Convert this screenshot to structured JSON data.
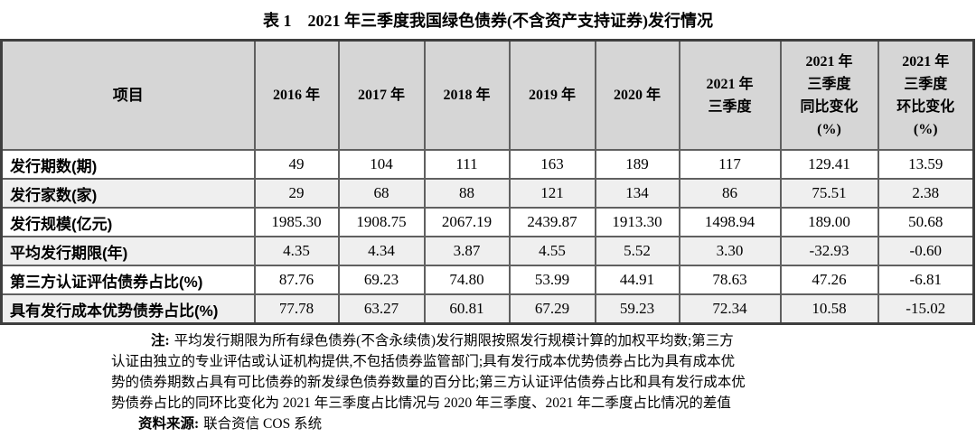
{
  "title": {
    "tag": "表 1",
    "text": "2021 年三季度我国绿色债券(不含资产支持证券)发行情况"
  },
  "table": {
    "item_header": "项目",
    "year_headers": [
      "2016 年",
      "2017 年",
      "2018 年",
      "2019 年",
      "2020 年",
      "2021 年\n三季度",
      "2021 年\n三季度\n同比变化\n(%)",
      "2021 年\n三季度\n环比变化\n(%)"
    ],
    "rows": [
      {
        "label": "发行期数(期)",
        "values": [
          "49",
          "104",
          "111",
          "163",
          "189",
          "117",
          "129.41",
          "13.59"
        ]
      },
      {
        "label": "发行家数(家)",
        "values": [
          "29",
          "68",
          "88",
          "121",
          "134",
          "86",
          "75.51",
          "2.38"
        ]
      },
      {
        "label": "发行规模(亿元)",
        "values": [
          "1985.30",
          "1908.75",
          "2067.19",
          "2439.87",
          "1913.30",
          "1498.94",
          "189.00",
          "50.68"
        ]
      },
      {
        "label": "平均发行期限(年)",
        "values": [
          "4.35",
          "4.34",
          "3.87",
          "4.55",
          "5.52",
          "3.30",
          "-32.93",
          "-0.60"
        ]
      },
      {
        "label": "第三方认证评估债券占比(%)",
        "values": [
          "87.76",
          "69.23",
          "74.80",
          "53.99",
          "44.91",
          "78.63",
          "47.26",
          "-6.81"
        ]
      },
      {
        "label": "具有发行成本优势债券占比(%)",
        "values": [
          "77.78",
          "63.27",
          "60.81",
          "67.29",
          "59.23",
          "72.34",
          "10.58",
          "-15.02"
        ]
      }
    ]
  },
  "notes": {
    "label": "注:",
    "lines": [
      "平均发行期限为所有绿色债券(不含永续债)发行期限按照发行规模计算的加权平均数;第三方",
      "认证由独立的专业评估或认证机构提供,不包括债券监管部门;具有发行成本优势债券占比为具有成本优",
      "势的债券期数占具有可比债券的新发绿色债券数量的百分比;第三方认证评估债券占比和具有发行成本优",
      "势债券占比的同环比变化为 2021 年三季度占比情况与 2020 年三季度、2021 年二季度占比情况的差值"
    ],
    "source_label": "资料来源:",
    "source_text": "联合资信 COS 系统"
  },
  "colors": {
    "header_bg": "#d6d6d6",
    "alt_row_bg": "#efefef",
    "border_inner": "#606060",
    "border_outer": "#3f3f3f",
    "text": "#000000",
    "page_bg": "#ffffff"
  }
}
